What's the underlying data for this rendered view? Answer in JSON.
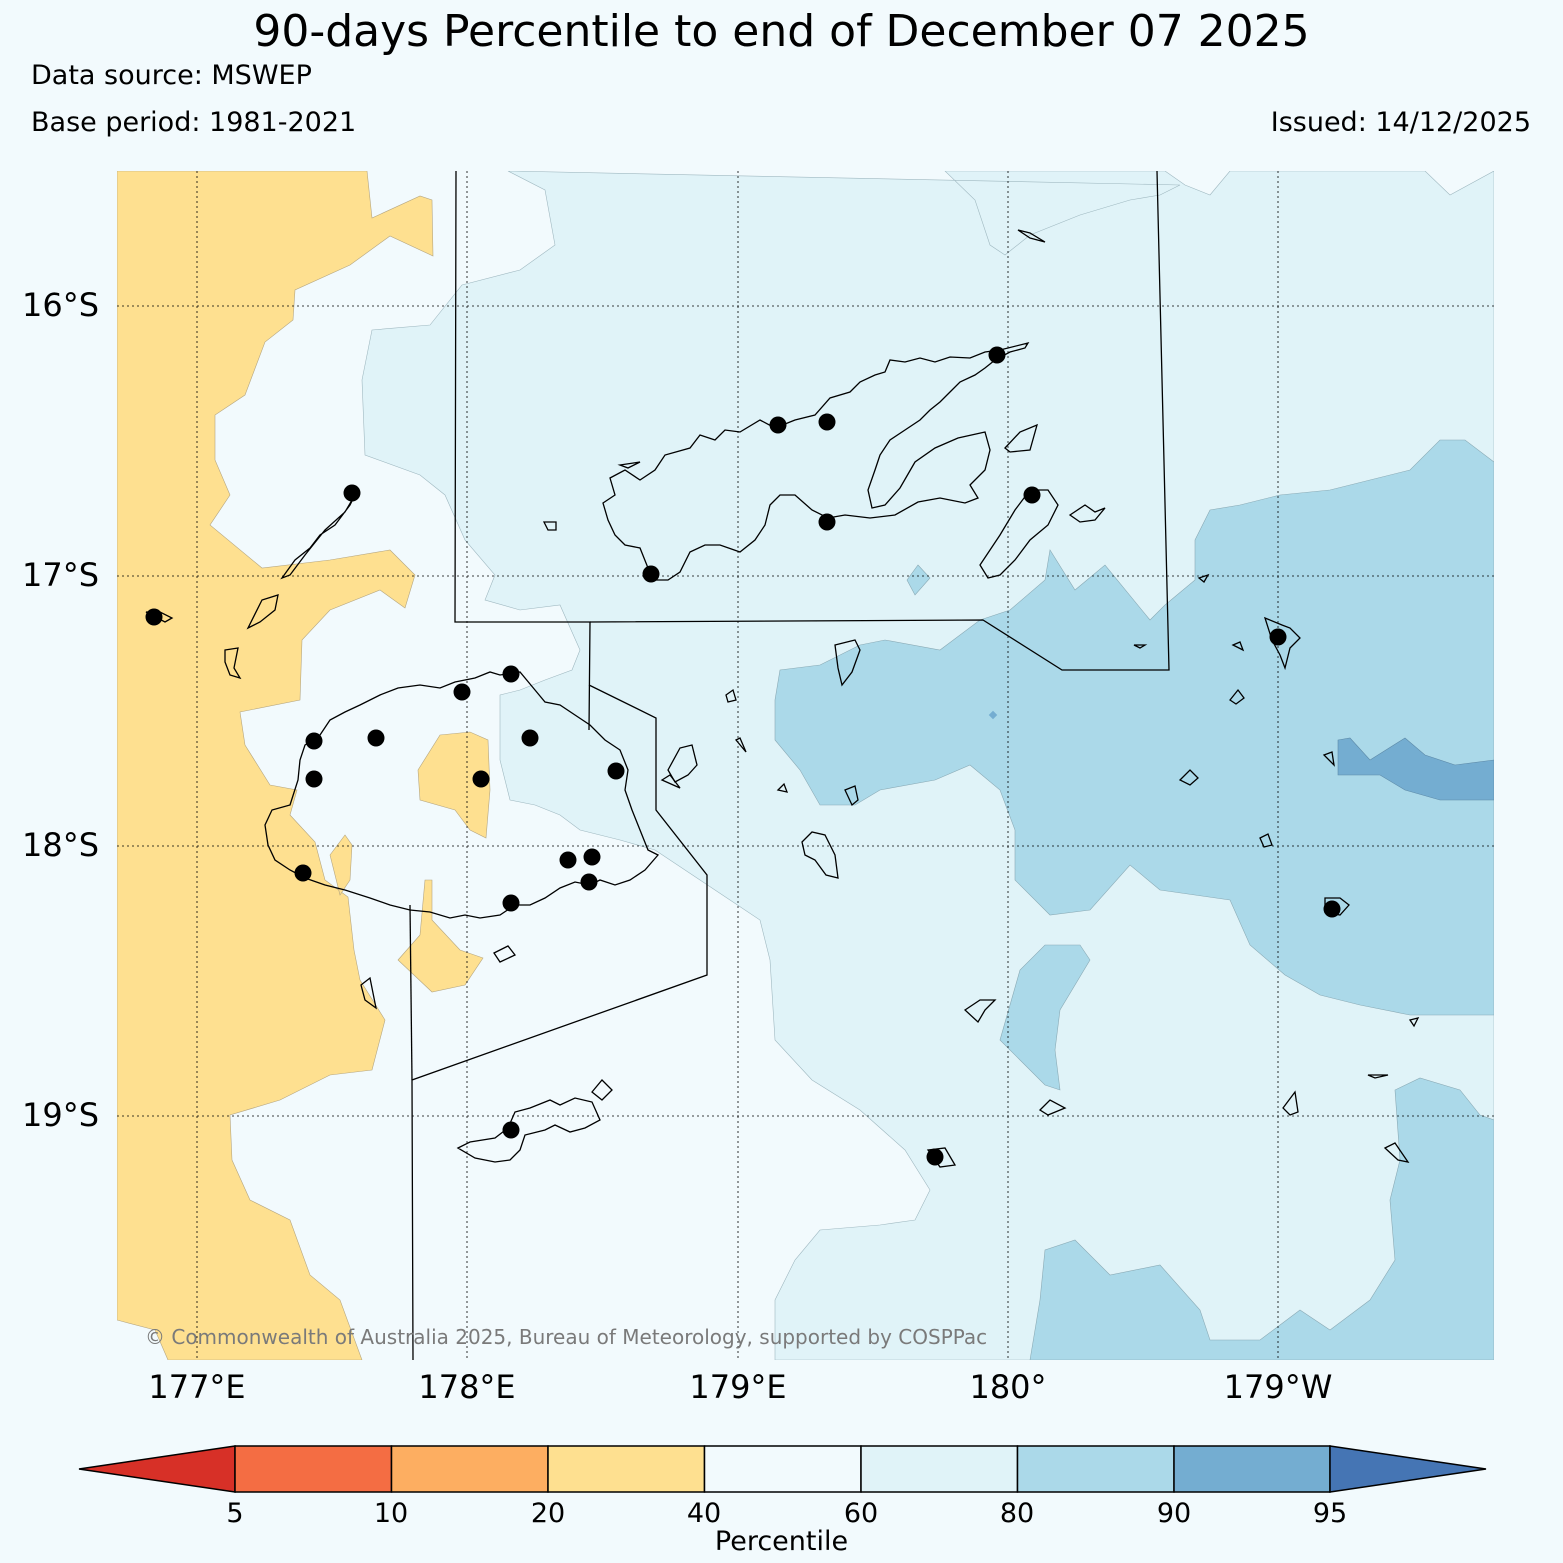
{
  "title": "90-days Percentile to end of December 07 2025",
  "data_source": "Data source: MSWEP",
  "base_period": "Base period: 1981-2021",
  "issued": "Issued: 14/12/2025",
  "copyright": "© Commonwealth of Australia 2025, Bureau of Meteorology, supported by COSPPac",
  "lat_labels": [
    "16°S",
    "17°S",
    "18°S",
    "19°S"
  ],
  "lon_labels": [
    "177°E",
    "178°E",
    "179°E",
    "180°",
    "179°W"
  ],
  "colorbar": {
    "label": "Percentile",
    "ticks": [
      "5",
      "10",
      "20",
      "40",
      "60",
      "80",
      "90",
      "95"
    ],
    "colors": {
      "below_5": "#d73027",
      "5_10": "#f46d43",
      "10_20": "#fdae61",
      "20_40": "#fee090",
      "40_60": "#f2fafd",
      "60_80": "#e0f3f8",
      "80_90": "#abd9e9",
      "90_95": "#74add1",
      "above_95": "#4575b4"
    }
  }
}
